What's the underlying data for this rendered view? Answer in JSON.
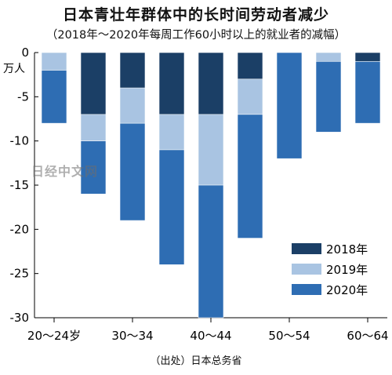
{
  "chart_data": {
    "type": "bar",
    "title": "日本青壮年群体中的长时间劳动者减少",
    "subtitle": "（2018年～2020年每周工作60小时以上的就业者的减幅）",
    "ylabel": "万人",
    "ylim": [
      -30,
      0
    ],
    "yticks": [
      0,
      -5,
      -10,
      -15,
      -20,
      -25,
      -30
    ],
    "categories": [
      "20～24岁",
      "",
      "30～34",
      "",
      "40～44",
      "",
      "50～54",
      "",
      "60～64"
    ],
    "series": [
      {
        "name": "2018年",
        "color": "#1b3f66",
        "values": [
          0,
          -7,
          -4,
          -7,
          -7,
          -3,
          0,
          0,
          -1
        ]
      },
      {
        "name": "2019年",
        "color": "#a9c4e2",
        "values": [
          -2,
          -10,
          -8,
          -11,
          -15,
          -7,
          0,
          -1,
          -1
        ]
      },
      {
        "name": "2020年",
        "color": "#2e6db3",
        "values": [
          -8,
          -16,
          -19,
          -24,
          -30,
          -21,
          -12,
          -9,
          -8
        ]
      }
    ],
    "legend_position": "bottom-right",
    "source": "（出处）日本总务省",
    "watermark": "日经中文网"
  }
}
